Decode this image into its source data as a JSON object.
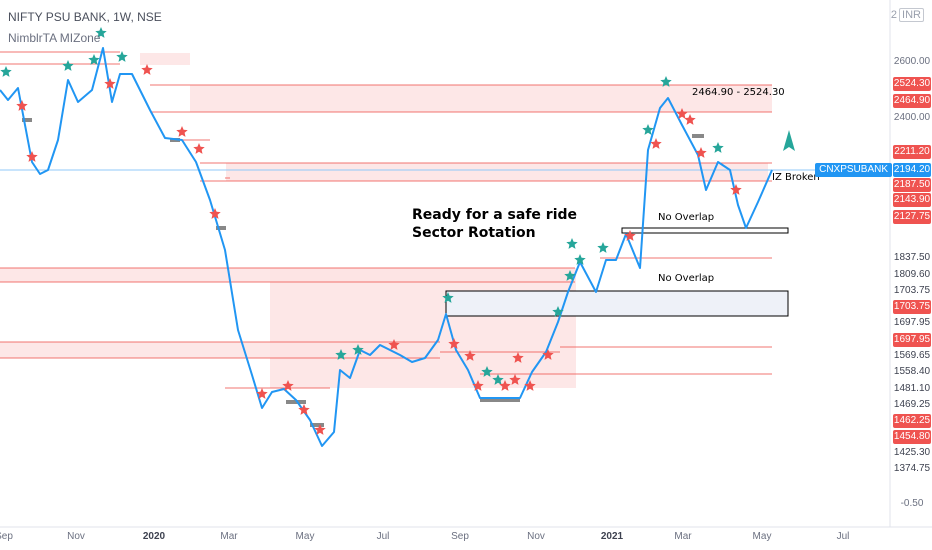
{
  "header": {
    "symbol_line": "NIFTY PSU BANK, 1W, NSE",
    "indicator": "NimblrTA MIZone"
  },
  "corner": {
    "left": "2",
    "box": "INR"
  },
  "annotations": {
    "headline1": "Ready for a safe ride",
    "headline2": "Sector Rotation",
    "zone_range": "2464.90 - 2524.30",
    "no_overlap_1": "No Overlap",
    "no_overlap_2": "No Overlap",
    "iz_broken": "IZ Broken"
  },
  "price_axis": {
    "ticks": [
      "2600.00",
      "2400.00",
      "-0.50"
    ],
    "labels": [
      {
        "text": "2524.30",
        "style": "red"
      },
      {
        "text": "2464.90",
        "style": "red"
      },
      {
        "text": "2211.20",
        "style": "red"
      },
      {
        "text": "2194.20",
        "style": "blue"
      },
      {
        "text": "2187.50",
        "style": "red"
      },
      {
        "text": "2143.90",
        "style": "red"
      },
      {
        "text": "2127.75",
        "style": "red"
      },
      {
        "text": "1837.50",
        "style": "plain"
      },
      {
        "text": "1809.60",
        "style": "plain"
      },
      {
        "text": "1703.75",
        "style": "plain"
      },
      {
        "text": "1703.75",
        "style": "red"
      },
      {
        "text": "1697.95",
        "style": "plain"
      },
      {
        "text": "1697.95",
        "style": "red"
      },
      {
        "text": "1569.65",
        "style": "plain"
      },
      {
        "text": "1558.40",
        "style": "plain"
      },
      {
        "text": "1481.10",
        "style": "plain"
      },
      {
        "text": "1469.25",
        "style": "plain"
      },
      {
        "text": "1462.25",
        "style": "red"
      },
      {
        "text": "1454.80",
        "style": "red"
      },
      {
        "text": "1425.30",
        "style": "plain"
      },
      {
        "text": "1374.75",
        "style": "plain"
      }
    ],
    "symbol_tag": "CNXPSUBANK"
  },
  "time_axis": [
    {
      "text": "Sep",
      "bold": false
    },
    {
      "text": "Nov",
      "bold": false
    },
    {
      "text": "2020",
      "bold": true
    },
    {
      "text": "Mar",
      "bold": false
    },
    {
      "text": "May",
      "bold": false
    },
    {
      "text": "Jul",
      "bold": false
    },
    {
      "text": "Sep",
      "bold": false
    },
    {
      "text": "Nov",
      "bold": false
    },
    {
      "text": "2021",
      "bold": true
    },
    {
      "text": "Mar",
      "bold": false
    },
    {
      "text": "May",
      "bold": false
    },
    {
      "text": "Jul",
      "bold": false
    }
  ],
  "colors": {
    "line": "#2196f3",
    "zone": "#ef5350",
    "zone_fill": "#fde3e3",
    "bull": "#26a69a",
    "bear": "#ef5350",
    "grey": "#888888",
    "arrow": "#26a69a"
  },
  "chart_data": {
    "type": "line",
    "title": "NIFTY PSU BANK, 1W, NSE",
    "x": [
      "2019-09",
      "2019-10",
      "2019-11",
      "2019-12",
      "2020-01",
      "2020-02",
      "2020-03",
      "2020-04",
      "2020-05",
      "2020-06",
      "2020-07",
      "2020-08",
      "2020-09",
      "2020-10",
      "2020-11",
      "2020-12",
      "2021-01",
      "2021-02",
      "2021-03",
      "2021-04",
      "2021-05"
    ],
    "series": [
      {
        "values": [
          2450,
          2300,
          2560,
          2600,
          2480,
          2250,
          1700,
          1370,
          1340,
          1520,
          1600,
          1570,
          1690,
          1480,
          1470,
          1690,
          1780,
          2280,
          2460,
          2150,
          2194.2
        ]
      }
    ],
    "current_price": 2194.2,
    "markers": {
      "bullish": "green star",
      "bearish": "red star"
    },
    "zones": [
      {
        "from": 2464.9,
        "to": 2524.3
      },
      {
        "from": 2187.5,
        "to": 2211.2
      },
      {
        "from": 1809.6,
        "to": 1837.5
      },
      {
        "from": 1697.95,
        "to": 1703.75
      },
      {
        "from": 1558.4,
        "to": 1569.65
      },
      {
        "from": 1454.8,
        "to": 1462.25
      }
    ]
  }
}
